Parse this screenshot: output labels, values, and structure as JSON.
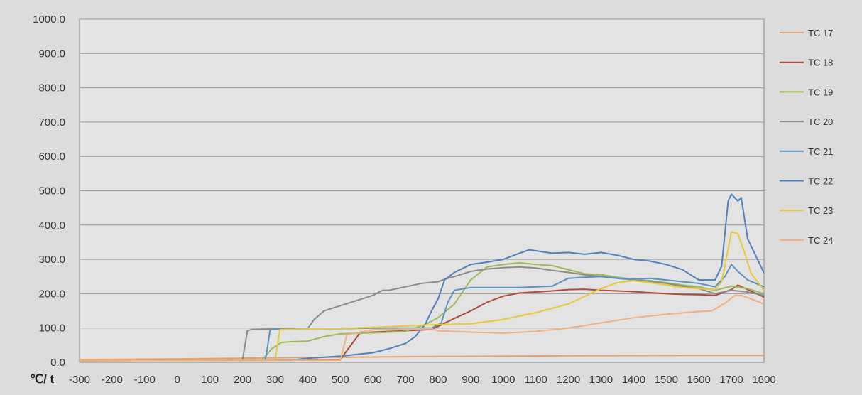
{
  "chart_data": {
    "type": "line",
    "xlabel": "℃/ t",
    "ylabel": "",
    "xlim": [
      -300,
      1800
    ],
    "ylim": [
      0,
      1000
    ],
    "xticks": [
      "-300",
      "-200",
      "-100",
      "0",
      "100",
      "200",
      "300",
      "400",
      "500",
      "600",
      "700",
      "800",
      "900",
      "1000",
      "1100",
      "1200",
      "1300",
      "1400",
      "1500",
      "1600",
      "1700",
      "1800"
    ],
    "yticks": [
      "0.0",
      "100.0",
      "200.0",
      "300.0",
      "400.0",
      "500.0",
      "600.0",
      "700.0",
      "800.0",
      "900.0",
      "1000.0"
    ],
    "grid": "horizontal",
    "legend_position": "right",
    "series": [
      {
        "name": "TC 17",
        "color": "#e8a16a",
        "points": [
          [
            -300,
            8
          ],
          [
            0,
            10
          ],
          [
            400,
            14
          ],
          [
            800,
            17
          ],
          [
            1200,
            19
          ],
          [
            1600,
            20
          ],
          [
            1800,
            20
          ]
        ]
      },
      {
        "name": "TC 18",
        "color": "#b04a3a",
        "points": [
          [
            -300,
            5
          ],
          [
            300,
            6
          ],
          [
            400,
            7
          ],
          [
            500,
            8
          ],
          [
            560,
            85
          ],
          [
            600,
            88
          ],
          [
            700,
            92
          ],
          [
            780,
            96
          ],
          [
            800,
            105
          ],
          [
            850,
            128
          ],
          [
            900,
            150
          ],
          [
            950,
            175
          ],
          [
            1000,
            193
          ],
          [
            1050,
            202
          ],
          [
            1100,
            205
          ],
          [
            1150,
            208
          ],
          [
            1200,
            212
          ],
          [
            1250,
            213
          ],
          [
            1300,
            210
          ],
          [
            1350,
            208
          ],
          [
            1400,
            206
          ],
          [
            1450,
            203
          ],
          [
            1500,
            200
          ],
          [
            1550,
            198
          ],
          [
            1600,
            197
          ],
          [
            1650,
            195
          ],
          [
            1700,
            212
          ],
          [
            1720,
            225
          ],
          [
            1750,
            212
          ],
          [
            1800,
            190
          ]
        ]
      },
      {
        "name": "TC 19",
        "color": "#9bbb59",
        "points": [
          [
            -300,
            5
          ],
          [
            260,
            6
          ],
          [
            290,
            40
          ],
          [
            320,
            58
          ],
          [
            350,
            60
          ],
          [
            400,
            62
          ],
          [
            450,
            75
          ],
          [
            500,
            83
          ],
          [
            600,
            86
          ],
          [
            700,
            90
          ],
          [
            760,
            110
          ],
          [
            800,
            130
          ],
          [
            850,
            170
          ],
          [
            900,
            240
          ],
          [
            950,
            278
          ],
          [
            1000,
            285
          ],
          [
            1050,
            290
          ],
          [
            1100,
            285
          ],
          [
            1150,
            282
          ],
          [
            1200,
            270
          ],
          [
            1250,
            258
          ],
          [
            1300,
            255
          ],
          [
            1350,
            248
          ],
          [
            1400,
            242
          ],
          [
            1450,
            238
          ],
          [
            1500,
            232
          ],
          [
            1550,
            225
          ],
          [
            1600,
            220
          ],
          [
            1650,
            210
          ],
          [
            1700,
            222
          ],
          [
            1750,
            215
          ],
          [
            1800,
            200
          ]
        ]
      },
      {
        "name": "TC 20",
        "color": "#8c8c8c",
        "points": [
          [
            -300,
            5
          ],
          [
            200,
            6
          ],
          [
            215,
            92
          ],
          [
            230,
            96
          ],
          [
            300,
            97
          ],
          [
            400,
            98
          ],
          [
            420,
            125
          ],
          [
            450,
            150
          ],
          [
            500,
            165
          ],
          [
            550,
            180
          ],
          [
            600,
            195
          ],
          [
            630,
            210
          ],
          [
            650,
            210
          ],
          [
            700,
            220
          ],
          [
            750,
            230
          ],
          [
            800,
            235
          ],
          [
            830,
            245
          ],
          [
            850,
            250
          ],
          [
            900,
            265
          ],
          [
            950,
            272
          ],
          [
            1000,
            276
          ],
          [
            1050,
            278
          ],
          [
            1100,
            275
          ],
          [
            1150,
            268
          ],
          [
            1200,
            262
          ],
          [
            1250,
            255
          ],
          [
            1300,
            250
          ],
          [
            1350,
            245
          ],
          [
            1400,
            240
          ],
          [
            1450,
            236
          ],
          [
            1500,
            230
          ],
          [
            1550,
            222
          ],
          [
            1600,
            215
          ],
          [
            1650,
            200
          ],
          [
            1700,
            210
          ],
          [
            1750,
            205
          ],
          [
            1800,
            195
          ]
        ]
      },
      {
        "name": "TC 21",
        "color": "#5b93c6",
        "points": [
          [
            -300,
            5
          ],
          [
            270,
            6
          ],
          [
            285,
            95
          ],
          [
            300,
            96
          ],
          [
            400,
            97
          ],
          [
            500,
            98
          ],
          [
            600,
            100
          ],
          [
            700,
            100
          ],
          [
            780,
            100
          ],
          [
            810,
            115
          ],
          [
            830,
            175
          ],
          [
            850,
            210
          ],
          [
            900,
            218
          ],
          [
            1000,
            218
          ],
          [
            1050,
            218
          ],
          [
            1100,
            220
          ],
          [
            1150,
            222
          ],
          [
            1200,
            245
          ],
          [
            1250,
            248
          ],
          [
            1300,
            250
          ],
          [
            1350,
            245
          ],
          [
            1400,
            243
          ],
          [
            1450,
            245
          ],
          [
            1500,
            240
          ],
          [
            1550,
            235
          ],
          [
            1600,
            230
          ],
          [
            1650,
            220
          ],
          [
            1680,
            250
          ],
          [
            1700,
            285
          ],
          [
            1720,
            265
          ],
          [
            1750,
            240
          ],
          [
            1800,
            220
          ]
        ]
      },
      {
        "name": "TC 22",
        "color": "#4f81bd",
        "points": [
          [
            -300,
            5
          ],
          [
            350,
            6
          ],
          [
            400,
            12
          ],
          [
            500,
            18
          ],
          [
            600,
            28
          ],
          [
            650,
            40
          ],
          [
            700,
            55
          ],
          [
            730,
            75
          ],
          [
            760,
            110
          ],
          [
            780,
            150
          ],
          [
            800,
            185
          ],
          [
            820,
            240
          ],
          [
            850,
            262
          ],
          [
            900,
            285
          ],
          [
            950,
            292
          ],
          [
            1000,
            300
          ],
          [
            1050,
            318
          ],
          [
            1080,
            328
          ],
          [
            1100,
            325
          ],
          [
            1150,
            318
          ],
          [
            1200,
            320
          ],
          [
            1250,
            315
          ],
          [
            1300,
            320
          ],
          [
            1350,
            312
          ],
          [
            1400,
            300
          ],
          [
            1450,
            295
          ],
          [
            1500,
            285
          ],
          [
            1550,
            270
          ],
          [
            1600,
            240
          ],
          [
            1650,
            240
          ],
          [
            1670,
            280
          ],
          [
            1690,
            470
          ],
          [
            1700,
            490
          ],
          [
            1720,
            470
          ],
          [
            1730,
            480
          ],
          [
            1750,
            360
          ],
          [
            1780,
            300
          ],
          [
            1800,
            260
          ]
        ]
      },
      {
        "name": "TC 23",
        "color": "#e8c93a",
        "points": [
          [
            -300,
            5
          ],
          [
            300,
            6
          ],
          [
            315,
            95
          ],
          [
            330,
            96
          ],
          [
            400,
            97
          ],
          [
            500,
            98
          ],
          [
            600,
            102
          ],
          [
            700,
            106
          ],
          [
            800,
            110
          ],
          [
            900,
            112
          ],
          [
            1000,
            125
          ],
          [
            1100,
            145
          ],
          [
            1200,
            170
          ],
          [
            1300,
            215
          ],
          [
            1350,
            232
          ],
          [
            1400,
            238
          ],
          [
            1450,
            232
          ],
          [
            1500,
            225
          ],
          [
            1550,
            218
          ],
          [
            1600,
            215
          ],
          [
            1650,
            212
          ],
          [
            1670,
            235
          ],
          [
            1690,
            330
          ],
          [
            1700,
            380
          ],
          [
            1720,
            375
          ],
          [
            1740,
            320
          ],
          [
            1760,
            260
          ],
          [
            1800,
            210
          ]
        ]
      },
      {
        "name": "TC 24",
        "color": "#f0b080",
        "points": [
          [
            -300,
            5
          ],
          [
            500,
            6
          ],
          [
            520,
            80
          ],
          [
            560,
            88
          ],
          [
            600,
            95
          ],
          [
            700,
            97
          ],
          [
            780,
            98
          ],
          [
            800,
            92
          ],
          [
            900,
            88
          ],
          [
            1000,
            85
          ],
          [
            1100,
            90
          ],
          [
            1200,
            100
          ],
          [
            1300,
            115
          ],
          [
            1400,
            130
          ],
          [
            1500,
            140
          ],
          [
            1600,
            148
          ],
          [
            1640,
            150
          ],
          [
            1680,
            172
          ],
          [
            1710,
            195
          ],
          [
            1730,
            195
          ],
          [
            1760,
            185
          ],
          [
            1800,
            170
          ]
        ]
      }
    ]
  }
}
